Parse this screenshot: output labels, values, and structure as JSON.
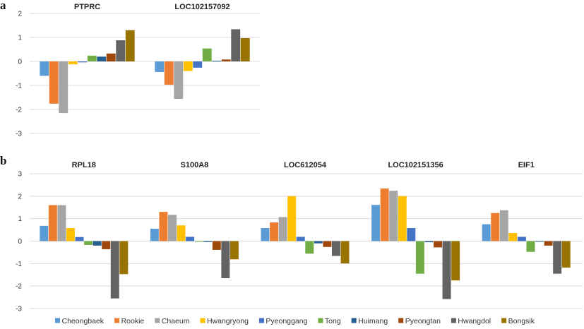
{
  "figure": {
    "panels": [
      "a",
      "b"
    ]
  },
  "chart_data": [
    {
      "type": "bar",
      "panel": "a",
      "title": "",
      "xlabel": "",
      "ylabel": "",
      "ylim": [
        -3,
        2
      ],
      "yticks": [
        2,
        1,
        0,
        -1,
        -2,
        -3
      ],
      "ytick_labels": [
        "2",
        "1",
        "0",
        "-1",
        "-2",
        "-3"
      ],
      "grid": true,
      "categories": [
        "PTPRC",
        "LOC102157092"
      ],
      "series": [
        {
          "name": "Cheongbaek",
          "color": "#5b9bd5",
          "values": [
            -0.6,
            -0.44
          ]
        },
        {
          "name": "Rookie",
          "color": "#ed7d31",
          "values": [
            -1.76,
            -0.97
          ]
        },
        {
          "name": "Chaeum",
          "color": "#a5a5a5",
          "values": [
            -2.15,
            -1.56
          ]
        },
        {
          "name": "Hwangryong",
          "color": "#ffc000",
          "values": [
            -0.12,
            -0.4
          ]
        },
        {
          "name": "Pyeonggang",
          "color": "#4472c4",
          "values": [
            -0.04,
            -0.26
          ]
        },
        {
          "name": "Tong",
          "color": "#70ad47",
          "values": [
            0.24,
            0.54
          ]
        },
        {
          "name": "Huimang",
          "color": "#255e91",
          "values": [
            0.2,
            0.03
          ]
        },
        {
          "name": "Pyeongtan",
          "color": "#9e480e",
          "values": [
            0.33,
            0.08
          ]
        },
        {
          "name": "Hwangdol",
          "color": "#636363",
          "values": [
            0.88,
            1.34
          ]
        },
        {
          "name": "Bongsik",
          "color": "#997300",
          "values": [
            1.3,
            0.97
          ]
        }
      ]
    },
    {
      "type": "bar",
      "panel": "b",
      "title": "",
      "xlabel": "",
      "ylabel": "",
      "ylim": [
        -3,
        3
      ],
      "yticks": [
        3,
        2,
        1,
        0,
        -1,
        -2,
        -3
      ],
      "ytick_labels": [
        "3",
        "2",
        "1",
        "0",
        "-1",
        "-2",
        "-3"
      ],
      "grid": true,
      "legend": "bottom",
      "categories": [
        "RPL18",
        "S100A8",
        "LOC612054",
        "LOC102151356",
        "EIF1"
      ],
      "series": [
        {
          "name": "Cheongbaek",
          "color": "#5b9bd5",
          "values": [
            0.68,
            0.55,
            0.58,
            1.61,
            0.75
          ]
        },
        {
          "name": "Rookie",
          "color": "#ed7d31",
          "values": [
            1.6,
            1.3,
            0.83,
            2.34,
            1.25
          ]
        },
        {
          "name": "Chaeum",
          "color": "#a5a5a5",
          "values": [
            1.6,
            1.17,
            1.07,
            2.24,
            1.37
          ]
        },
        {
          "name": "Hwangryong",
          "color": "#ffc000",
          "values": [
            0.58,
            0.7,
            2.0,
            2.0,
            0.36
          ]
        },
        {
          "name": "Pyeonggang",
          "color": "#4472c4",
          "values": [
            0.18,
            0.19,
            0.19,
            0.58,
            0.19
          ]
        },
        {
          "name": "Tong",
          "color": "#70ad47",
          "values": [
            -0.17,
            -0.03,
            -0.56,
            -1.45,
            -0.48
          ]
        },
        {
          "name": "Huimang",
          "color": "#255e91",
          "values": [
            -0.2,
            -0.04,
            -0.1,
            -0.05,
            -0.03
          ]
        },
        {
          "name": "Pyeongtan",
          "color": "#9e480e",
          "values": [
            -0.36,
            -0.39,
            -0.26,
            -0.28,
            -0.2
          ]
        },
        {
          "name": "Hwangdol",
          "color": "#636363",
          "values": [
            -2.55,
            -1.65,
            -0.66,
            -2.58,
            -1.45
          ]
        },
        {
          "name": "Bongsik",
          "color": "#997300",
          "values": [
            -1.47,
            -0.81,
            -0.99,
            -1.75,
            -1.18
          ]
        }
      ]
    }
  ]
}
